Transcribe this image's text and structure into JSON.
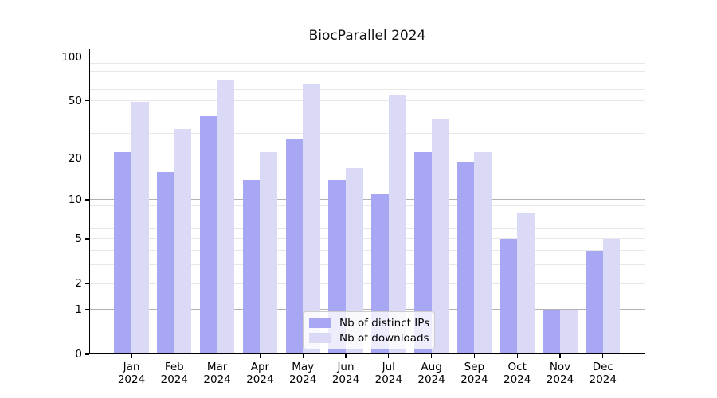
{
  "chart_data": {
    "type": "bar",
    "title": "BiocParallel 2024",
    "y_scale": "log1p",
    "ylim": [
      0,
      114
    ],
    "y_ticks": [
      0,
      1,
      2,
      5,
      10,
      20,
      50,
      100
    ],
    "grid": {
      "major_lines": [
        1,
        10,
        100
      ],
      "minor_lines": [
        2,
        3,
        4,
        5,
        6,
        7,
        8,
        9,
        20,
        30,
        40,
        50,
        60,
        70,
        80,
        90
      ]
    },
    "categories": [
      "Jan",
      "Feb",
      "Mar",
      "Apr",
      "May",
      "Jun",
      "Jul",
      "Aug",
      "Sep",
      "Oct",
      "Nov",
      "Dec"
    ],
    "year_label": "2024",
    "series": [
      {
        "name": "Nb of distinct IPs",
        "color": "#a7a7f4",
        "values": [
          22,
          16,
          39,
          14,
          27,
          14,
          11,
          22,
          19,
          5,
          1,
          4
        ]
      },
      {
        "name": "Nb of downloads",
        "color": "#dadaf6",
        "values": [
          49,
          32,
          70,
          22,
          65,
          17,
          55,
          38,
          22,
          8,
          1,
          5
        ]
      }
    ],
    "legend_position": "bottom-center",
    "xlabel": "",
    "ylabel": ""
  },
  "colors": {
    "background": "#ffffff",
    "frame": "#000000",
    "grid_major": "#b2b2b2",
    "grid_minor": "#e8e8e8",
    "text": "#000000",
    "legend_border": "#cccccc"
  }
}
